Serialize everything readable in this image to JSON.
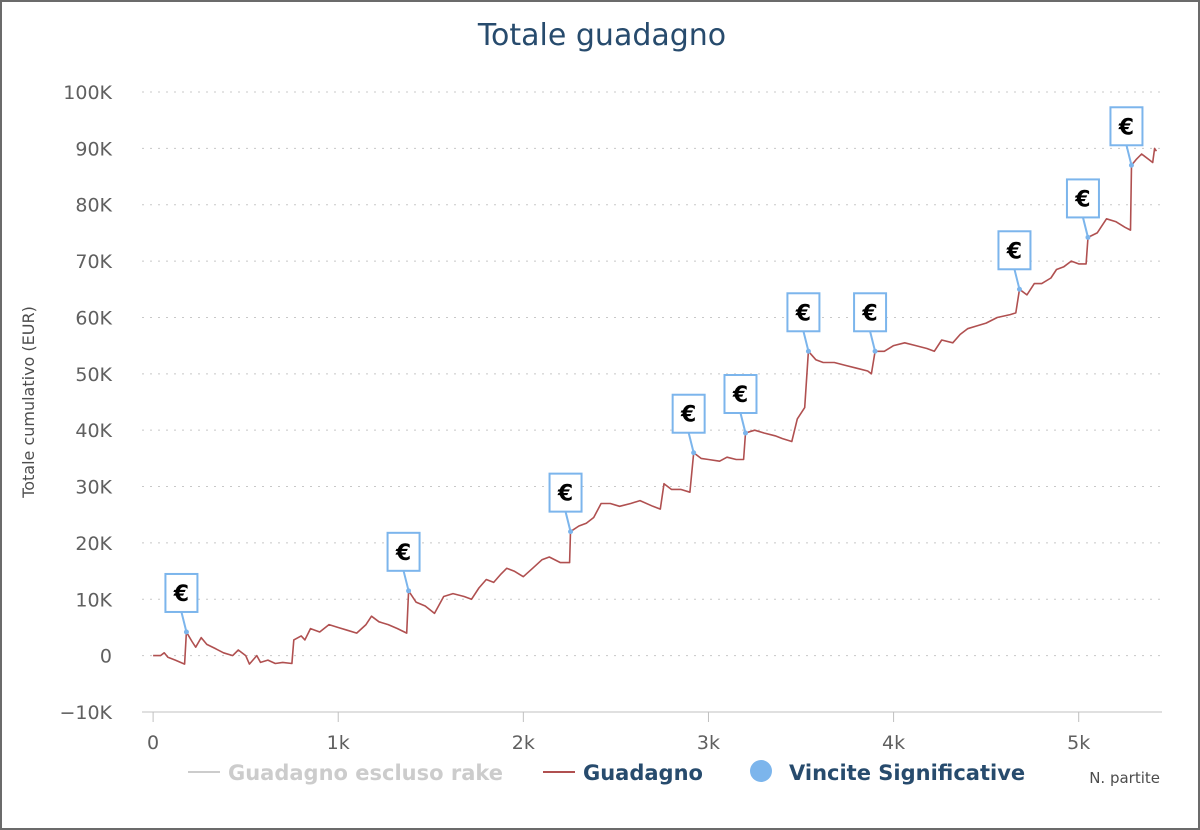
{
  "chart_data": {
    "type": "line",
    "title": "Totale guadagno",
    "ylabel": "Totale cumulativo (EUR)",
    "xlabel": "N. partite",
    "xlim": [
      -60,
      5450
    ],
    "ylim": [
      -10000,
      100000
    ],
    "y_ticks": [
      {
        "value": -10000,
        "label": "−10K"
      },
      {
        "value": 0,
        "label": "0"
      },
      {
        "value": 10000,
        "label": "10K"
      },
      {
        "value": 20000,
        "label": "20K"
      },
      {
        "value": 30000,
        "label": "30K"
      },
      {
        "value": 40000,
        "label": "40K"
      },
      {
        "value": 50000,
        "label": "50K"
      },
      {
        "value": 60000,
        "label": "60K"
      },
      {
        "value": 70000,
        "label": "70K"
      },
      {
        "value": 80000,
        "label": "80K"
      },
      {
        "value": 90000,
        "label": "90K"
      },
      {
        "value": 100000,
        "label": "100K"
      }
    ],
    "x_ticks": [
      {
        "value": 0,
        "label": "0"
      },
      {
        "value": 1000,
        "label": "1k"
      },
      {
        "value": 2000,
        "label": "2k"
      },
      {
        "value": 3000,
        "label": "3k"
      },
      {
        "value": 4000,
        "label": "4k"
      },
      {
        "value": 5000,
        "label": "5k"
      }
    ],
    "grid": true,
    "legend_position": "bottom",
    "series": [
      {
        "name": "Guadagno escluso rake",
        "color": "#cccccc",
        "visible": false,
        "points": []
      },
      {
        "name": "Guadagno",
        "color": "#b05050",
        "visible": true,
        "points": [
          [
            0,
            0
          ],
          [
            40,
            0
          ],
          [
            60,
            500
          ],
          [
            80,
            -300
          ],
          [
            120,
            -800
          ],
          [
            170,
            -1500
          ],
          [
            180,
            4200
          ],
          [
            210,
            2500
          ],
          [
            230,
            1500
          ],
          [
            260,
            3200
          ],
          [
            290,
            2000
          ],
          [
            340,
            1200
          ],
          [
            380,
            500
          ],
          [
            430,
            0
          ],
          [
            460,
            1000
          ],
          [
            500,
            0
          ],
          [
            520,
            -1500
          ],
          [
            560,
            0
          ],
          [
            580,
            -1200
          ],
          [
            620,
            -800
          ],
          [
            660,
            -1400
          ],
          [
            700,
            -1200
          ],
          [
            750,
            -1400
          ],
          [
            760,
            2800
          ],
          [
            800,
            3500
          ],
          [
            820,
            2800
          ],
          [
            850,
            4800
          ],
          [
            900,
            4200
          ],
          [
            950,
            5500
          ],
          [
            1000,
            5000
          ],
          [
            1050,
            4500
          ],
          [
            1100,
            4000
          ],
          [
            1150,
            5500
          ],
          [
            1180,
            7000
          ],
          [
            1220,
            6000
          ],
          [
            1270,
            5500
          ],
          [
            1320,
            4800
          ],
          [
            1370,
            4000
          ],
          [
            1380,
            11500
          ],
          [
            1420,
            9500
          ],
          [
            1470,
            8800
          ],
          [
            1520,
            7500
          ],
          [
            1570,
            10500
          ],
          [
            1620,
            11000
          ],
          [
            1680,
            10500
          ],
          [
            1720,
            10000
          ],
          [
            1760,
            12000
          ],
          [
            1800,
            13500
          ],
          [
            1840,
            13000
          ],
          [
            1880,
            14500
          ],
          [
            1910,
            15500
          ],
          [
            1950,
            15000
          ],
          [
            2000,
            14000
          ],
          [
            2050,
            15500
          ],
          [
            2100,
            17000
          ],
          [
            2140,
            17500
          ],
          [
            2200,
            16500
          ],
          [
            2250,
            16500
          ],
          [
            2255,
            22000
          ],
          [
            2300,
            23000
          ],
          [
            2340,
            23500
          ],
          [
            2380,
            24500
          ],
          [
            2420,
            27000
          ],
          [
            2470,
            27000
          ],
          [
            2520,
            26500
          ],
          [
            2580,
            27000
          ],
          [
            2630,
            27500
          ],
          [
            2700,
            26500
          ],
          [
            2740,
            26000
          ],
          [
            2760,
            30500
          ],
          [
            2800,
            29500
          ],
          [
            2850,
            29500
          ],
          [
            2900,
            29000
          ],
          [
            2920,
            36000
          ],
          [
            2960,
            35000
          ],
          [
            3000,
            34800
          ],
          [
            3060,
            34500
          ],
          [
            3100,
            35200
          ],
          [
            3150,
            34800
          ],
          [
            3190,
            34800
          ],
          [
            3200,
            39500
          ],
          [
            3250,
            40000
          ],
          [
            3300,
            39500
          ],
          [
            3360,
            39000
          ],
          [
            3400,
            38500
          ],
          [
            3450,
            38000
          ],
          [
            3480,
            42000
          ],
          [
            3520,
            44000
          ],
          [
            3540,
            54000
          ],
          [
            3580,
            52500
          ],
          [
            3620,
            52000
          ],
          [
            3680,
            52000
          ],
          [
            3740,
            51500
          ],
          [
            3800,
            51000
          ],
          [
            3860,
            50500
          ],
          [
            3880,
            50000
          ],
          [
            3900,
            54000
          ],
          [
            3950,
            54000
          ],
          [
            4000,
            55000
          ],
          [
            4060,
            55500
          ],
          [
            4120,
            55000
          ],
          [
            4180,
            54500
          ],
          [
            4220,
            54000
          ],
          [
            4260,
            56000
          ],
          [
            4320,
            55500
          ],
          [
            4360,
            57000
          ],
          [
            4400,
            58000
          ],
          [
            4450,
            58500
          ],
          [
            4500,
            59000
          ],
          [
            4560,
            60000
          ],
          [
            4630,
            60500
          ],
          [
            4660,
            60800
          ],
          [
            4680,
            65000
          ],
          [
            4720,
            64000
          ],
          [
            4760,
            66000
          ],
          [
            4800,
            66000
          ],
          [
            4850,
            67000
          ],
          [
            4880,
            68500
          ],
          [
            4920,
            69000
          ],
          [
            4960,
            70000
          ],
          [
            5000,
            69500
          ],
          [
            5040,
            69500
          ],
          [
            5050,
            74200
          ],
          [
            5100,
            75000
          ],
          [
            5150,
            77500
          ],
          [
            5200,
            77000
          ],
          [
            5250,
            76000
          ],
          [
            5280,
            75500
          ],
          [
            5285,
            87000
          ],
          [
            5310,
            88000
          ],
          [
            5340,
            89000
          ],
          [
            5380,
            88000
          ],
          [
            5400,
            87500
          ],
          [
            5410,
            90000
          ],
          [
            5420,
            89500
          ]
        ]
      },
      {
        "name": "Vincite Significative",
        "color": "#7cb5ec",
        "visible": true,
        "flag_symbol": "€",
        "points": [
          [
            180,
            4200
          ],
          [
            1380,
            11500
          ],
          [
            2255,
            22000
          ],
          [
            2920,
            36000
          ],
          [
            3200,
            39500
          ],
          [
            3540,
            54000
          ],
          [
            3900,
            54000
          ],
          [
            4680,
            65000
          ],
          [
            5050,
            74200
          ],
          [
            5285,
            87000
          ]
        ]
      }
    ]
  }
}
